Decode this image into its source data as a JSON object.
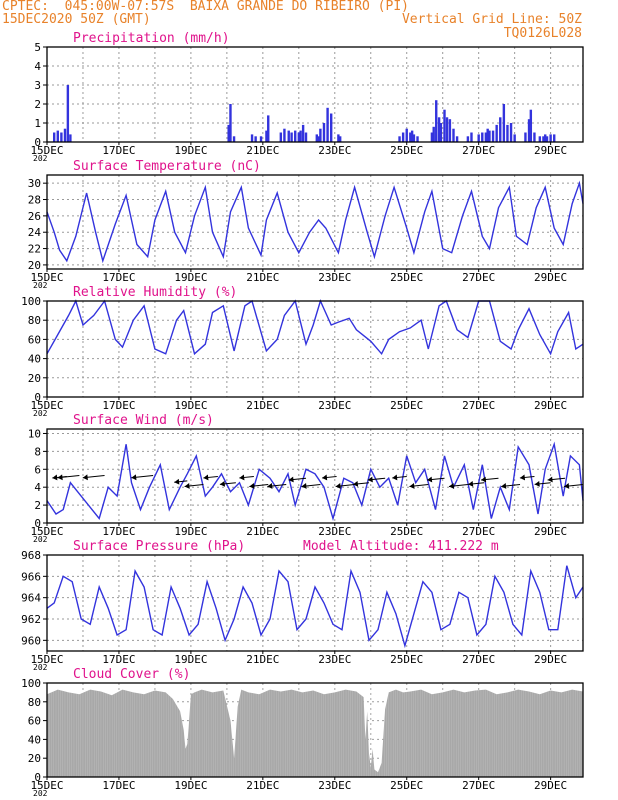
{
  "header": {
    "line1_left": "CPTEC:  045:00W-07:57S  BAIXA GRANDE DO RIBEIRO (PI)",
    "line2_left": "15DEC2020 50Z (GMT)",
    "line2_right": "Vertical Grid Line: 50Z",
    "line3_right": "TQ0126L028"
  },
  "colors": {
    "header": "#e8822a",
    "title": "#e0138c",
    "line": "#3333dd",
    "bar": "#3333dd",
    "cloud": "#a8a8a8",
    "grid": "#9a9a9a"
  },
  "x_tick_labels": [
    "15DEC",
    "17DEC",
    "19DEC",
    "21DEC",
    "23DEC",
    "25DEC",
    "27DEC",
    "29DEC"
  ],
  "year_fragment": "202",
  "chart_data": [
    {
      "type": "bar",
      "title": "Precipitation (mm/h)",
      "ylim": [
        0,
        5
      ],
      "yticks": [
        "0",
        "1",
        "2",
        "3",
        "4",
        "5"
      ],
      "x_start_day": 15.0,
      "x_end_day": 29.9,
      "bars": [
        [
          15.2,
          0.5
        ],
        [
          15.3,
          0.6
        ],
        [
          15.4,
          0.5
        ],
        [
          15.5,
          0.7
        ],
        [
          15.58,
          3.0
        ],
        [
          15.65,
          0.4
        ],
        [
          20.05,
          0.9
        ],
        [
          20.1,
          2.0
        ],
        [
          20.2,
          0.3
        ],
        [
          20.7,
          0.4
        ],
        [
          20.8,
          0.3
        ],
        [
          20.95,
          0.3
        ],
        [
          21.1,
          0.6
        ],
        [
          21.15,
          1.4
        ],
        [
          21.5,
          0.5
        ],
        [
          21.6,
          0.7
        ],
        [
          21.72,
          0.6
        ],
        [
          21.8,
          0.5
        ],
        [
          21.9,
          0.6
        ],
        [
          22.0,
          0.5
        ],
        [
          22.05,
          0.6
        ],
        [
          22.12,
          0.9
        ],
        [
          22.2,
          0.5
        ],
        [
          22.5,
          0.4
        ],
        [
          22.55,
          0.3
        ],
        [
          22.6,
          0.7
        ],
        [
          22.7,
          1.0
        ],
        [
          22.8,
          1.8
        ],
        [
          22.9,
          1.5
        ],
        [
          23.1,
          0.4
        ],
        [
          23.15,
          0.3
        ],
        [
          24.8,
          0.3
        ],
        [
          24.9,
          0.5
        ],
        [
          25.0,
          0.7
        ],
        [
          25.1,
          0.5
        ],
        [
          25.15,
          0.6
        ],
        [
          25.2,
          0.4
        ],
        [
          25.3,
          0.3
        ],
        [
          25.7,
          0.5
        ],
        [
          25.75,
          0.8
        ],
        [
          25.82,
          2.2
        ],
        [
          25.9,
          1.3
        ],
        [
          25.95,
          1.0
        ],
        [
          26.05,
          1.7
        ],
        [
          26.12,
          1.3
        ],
        [
          26.2,
          1.2
        ],
        [
          26.3,
          0.7
        ],
        [
          26.4,
          0.3
        ],
        [
          26.7,
          0.3
        ],
        [
          26.8,
          0.5
        ],
        [
          27.0,
          0.4
        ],
        [
          27.1,
          0.5
        ],
        [
          27.2,
          0.5
        ],
        [
          27.25,
          0.7
        ],
        [
          27.3,
          0.6
        ],
        [
          27.4,
          0.6
        ],
        [
          27.5,
          0.9
        ],
        [
          27.6,
          1.3
        ],
        [
          27.7,
          2.0
        ],
        [
          27.8,
          0.9
        ],
        [
          27.9,
          1.0
        ],
        [
          28.0,
          0.4
        ],
        [
          28.3,
          0.5
        ],
        [
          28.4,
          1.2
        ],
        [
          28.45,
          1.7
        ],
        [
          28.55,
          0.5
        ],
        [
          28.7,
          0.3
        ],
        [
          28.8,
          0.3
        ],
        [
          28.85,
          0.4
        ],
        [
          28.9,
          0.3
        ],
        [
          29.0,
          0.4
        ],
        [
          29.1,
          0.4
        ]
      ]
    },
    {
      "type": "line",
      "title": "Surface Temperature (nC)",
      "ylim": [
        19.5,
        31
      ],
      "yticks": [
        "20",
        "22",
        "24",
        "26",
        "28",
        "30"
      ],
      "ytick_values": [
        20,
        22,
        24,
        26,
        28,
        30
      ],
      "x": [
        15.0,
        15.2,
        15.35,
        15.55,
        15.8,
        16.1,
        16.35,
        16.55,
        16.9,
        17.2,
        17.5,
        17.8,
        18.0,
        18.3,
        18.55,
        18.85,
        19.1,
        19.4,
        19.6,
        19.9,
        20.1,
        20.4,
        20.6,
        20.95,
        21.1,
        21.4,
        21.7,
        22.0,
        22.3,
        22.55,
        22.75,
        23.1,
        23.3,
        23.55,
        23.9,
        24.1,
        24.4,
        24.65,
        25.0,
        25.2,
        25.5,
        25.7,
        26.0,
        26.25,
        26.55,
        26.8,
        27.1,
        27.3,
        27.55,
        27.85,
        28.05,
        28.35,
        28.6,
        28.85,
        29.1,
        29.35,
        29.6,
        29.8,
        29.9
      ],
      "y": [
        26.5,
        24.0,
        21.8,
        20.5,
        23.5,
        28.8,
        24.0,
        20.5,
        25.0,
        28.5,
        22.5,
        21.0,
        25.5,
        29.0,
        24.0,
        21.5,
        26.0,
        29.5,
        24.0,
        21.0,
        26.5,
        29.5,
        24.5,
        21.2,
        25.5,
        28.8,
        24.0,
        21.5,
        24.0,
        25.5,
        24.5,
        21.5,
        25.5,
        29.5,
        24.0,
        21.0,
        26.0,
        29.5,
        24.5,
        21.5,
        26.5,
        29.0,
        22.0,
        21.5,
        26.0,
        29.0,
        23.5,
        22.0,
        27.0,
        29.5,
        23.5,
        22.5,
        27.0,
        29.5,
        24.5,
        22.5,
        27.5,
        30.0,
        27.5
      ]
    },
    {
      "type": "line",
      "title": "Relative Humidity (%)",
      "ylim": [
        0,
        100
      ],
      "yticks": [
        "0",
        "20",
        "40",
        "60",
        "80",
        "100"
      ],
      "ytick_values": [
        0,
        20,
        40,
        60,
        80,
        100
      ],
      "x": [
        15.0,
        15.3,
        15.6,
        15.8,
        16.0,
        16.3,
        16.6,
        16.9,
        17.1,
        17.4,
        17.7,
        18.0,
        18.3,
        18.6,
        18.8,
        19.1,
        19.4,
        19.6,
        19.9,
        20.2,
        20.5,
        20.7,
        21.1,
        21.4,
        21.6,
        21.9,
        22.2,
        22.4,
        22.6,
        22.9,
        23.1,
        23.4,
        23.6,
        24.0,
        24.3,
        24.5,
        24.8,
        25.1,
        25.4,
        25.6,
        25.9,
        26.1,
        26.4,
        26.7,
        27.0,
        27.3,
        27.6,
        27.9,
        28.1,
        28.4,
        28.7,
        29.0,
        29.2,
        29.5,
        29.7,
        29.9
      ],
      "y": [
        45,
        65,
        85,
        100,
        75,
        85,
        100,
        60,
        52,
        80,
        95,
        50,
        45,
        80,
        90,
        45,
        55,
        88,
        95,
        48,
        95,
        100,
        48,
        60,
        85,
        100,
        55,
        75,
        100,
        75,
        78,
        82,
        70,
        58,
        45,
        60,
        68,
        72,
        80,
        50,
        95,
        100,
        70,
        62,
        100,
        100,
        58,
        50,
        70,
        92,
        65,
        45,
        68,
        88,
        50,
        55
      ]
    },
    {
      "type": "line",
      "title": "Surface Wind (m/s)",
      "ylim": [
        0,
        10.5
      ],
      "yticks": [
        "0",
        "2",
        "4",
        "6",
        "8",
        "10"
      ],
      "ytick_values": [
        0,
        2,
        4,
        6,
        8,
        10
      ],
      "x": [
        15.0,
        15.25,
        15.45,
        15.65,
        15.85,
        16.15,
        16.45,
        16.7,
        16.95,
        17.2,
        17.35,
        17.6,
        17.85,
        18.15,
        18.4,
        18.7,
        18.9,
        19.15,
        19.4,
        19.6,
        19.85,
        20.1,
        20.35,
        20.6,
        20.9,
        21.2,
        21.45,
        21.7,
        21.9,
        22.2,
        22.45,
        22.7,
        22.95,
        23.25,
        23.5,
        23.75,
        24.0,
        24.25,
        24.5,
        24.75,
        25.0,
        25.25,
        25.5,
        25.8,
        26.05,
        26.3,
        26.6,
        26.85,
        27.1,
        27.35,
        27.6,
        27.85,
        28.1,
        28.4,
        28.65,
        28.85,
        29.1,
        29.35,
        29.55,
        29.8,
        29.9
      ],
      "y": [
        2.5,
        1.0,
        1.5,
        4.5,
        3.5,
        2.0,
        0.5,
        4.0,
        3.0,
        8.8,
        4.5,
        1.5,
        4.0,
        6.5,
        1.5,
        4.0,
        5.5,
        7.5,
        3.0,
        4.0,
        5.5,
        3.5,
        4.5,
        2.0,
        6.0,
        5.0,
        3.5,
        5.5,
        2.0,
        6.0,
        5.5,
        4.0,
        0.5,
        5.0,
        4.5,
        2.0,
        6.0,
        4.0,
        5.0,
        2.0,
        7.5,
        4.5,
        6.0,
        1.5,
        7.5,
        4.0,
        6.5,
        1.5,
        6.5,
        0.5,
        4.0,
        1.5,
        8.5,
        6.5,
        1.0,
        6.0,
        8.8,
        3.0,
        7.5,
        6.5,
        2.5
      ],
      "arrows": [
        [
          15.55,
          1
        ],
        [
          15.9,
          3.5
        ],
        [
          16.6,
          3.5
        ],
        [
          17.95,
          3.5
        ],
        [
          18.9,
          0.5
        ],
        [
          19.35,
          2.5
        ],
        [
          19.75,
          1.0
        ],
        [
          20.25,
          1.5
        ],
        [
          20.75,
          1.0
        ],
        [
          21.15,
          2.5
        ],
        [
          21.65,
          2.5
        ],
        [
          22.2,
          2.0
        ],
        [
          22.6,
          2.5
        ],
        [
          23.05,
          1.0
        ],
        [
          23.55,
          2.5
        ],
        [
          23.95,
          1.5
        ],
        [
          24.4,
          2.0
        ],
        [
          25.0,
          1.0
        ],
        [
          25.6,
          2.5
        ],
        [
          26.05,
          2.0
        ],
        [
          26.7,
          2.5
        ],
        [
          27.15,
          1.5
        ],
        [
          27.55,
          2.0
        ],
        [
          28.15,
          2.5
        ],
        [
          28.55,
          1.0
        ],
        [
          29.0,
          1.5
        ],
        [
          29.4,
          2.0
        ],
        [
          29.9,
          2.5
        ]
      ]
    },
    {
      "type": "line",
      "title": "Surface Pressure (hPa)",
      "subtitle": "Model Altitude: 411.222 m",
      "ylim": [
        959,
        968
      ],
      "yticks": [
        "960",
        "962",
        "964",
        "966",
        "968"
      ],
      "ytick_values": [
        960,
        962,
        964,
        966,
        968
      ],
      "x": [
        15.0,
        15.2,
        15.45,
        15.7,
        15.95,
        16.2,
        16.45,
        16.7,
        16.95,
        17.2,
        17.45,
        17.7,
        17.95,
        18.2,
        18.45,
        18.7,
        18.95,
        19.2,
        19.45,
        19.7,
        19.95,
        20.2,
        20.45,
        20.7,
        20.95,
        21.2,
        21.45,
        21.7,
        21.95,
        22.2,
        22.45,
        22.7,
        22.95,
        23.2,
        23.45,
        23.7,
        23.95,
        24.2,
        24.45,
        24.7,
        24.95,
        25.2,
        25.45,
        25.7,
        25.95,
        26.2,
        26.45,
        26.7,
        26.95,
        27.2,
        27.45,
        27.7,
        27.95,
        28.2,
        28.45,
        28.7,
        28.95,
        29.2,
        29.45,
        29.7,
        29.9
      ],
      "y": [
        963,
        963.5,
        966,
        965.5,
        962,
        961.5,
        965,
        963,
        960.5,
        961,
        966.5,
        965,
        961,
        960.5,
        965,
        963,
        960.5,
        961.5,
        965.5,
        963,
        960,
        962,
        965,
        963.5,
        960.5,
        962,
        966.5,
        965.5,
        961,
        962,
        965,
        963.5,
        961.5,
        961,
        966.5,
        964.5,
        960,
        961,
        964.5,
        962.5,
        959.5,
        962.5,
        965.5,
        964.5,
        961,
        961.5,
        964.5,
        964,
        960.5,
        961.5,
        966,
        964.5,
        961.5,
        960.5,
        966.5,
        964.5,
        961,
        961,
        967,
        964,
        965
      ]
    },
    {
      "type": "area",
      "title": "Cloud Cover (%)",
      "ylim": [
        0,
        100
      ],
      "yticks": [
        "0",
        "20",
        "40",
        "60",
        "80",
        "100"
      ],
      "ytick_values": [
        0,
        20,
        40,
        60,
        80,
        100
      ],
      "x": [
        15.0,
        15.3,
        15.6,
        15.9,
        16.2,
        16.5,
        16.8,
        17.1,
        17.4,
        17.7,
        18.0,
        18.3,
        18.5,
        18.7,
        18.8,
        18.85,
        18.9,
        18.95,
        19.0,
        19.1,
        19.3,
        19.6,
        19.9,
        20.1,
        20.2,
        20.3,
        20.4,
        20.6,
        20.9,
        21.2,
        21.5,
        21.8,
        22.1,
        22.4,
        22.7,
        23.0,
        23.3,
        23.6,
        23.8,
        23.85,
        23.9,
        23.95,
        24.0,
        24.05,
        24.1,
        24.2,
        24.3,
        24.4,
        24.5,
        24.7,
        24.9,
        25.1,
        25.4,
        25.7,
        26.0,
        26.3,
        26.6,
        26.9,
        27.2,
        27.5,
        27.8,
        28.1,
        28.4,
        28.7,
        29.0,
        29.3,
        29.6,
        29.9
      ],
      "y": [
        88,
        93,
        90,
        88,
        93,
        91,
        87,
        93,
        90,
        88,
        92,
        90,
        83,
        70,
        50,
        30,
        35,
        60,
        88,
        90,
        93,
        90,
        92,
        60,
        20,
        75,
        93,
        90,
        88,
        93,
        91,
        93,
        90,
        92,
        88,
        90,
        93,
        91,
        85,
        40,
        70,
        25,
        10,
        30,
        8,
        5,
        15,
        72,
        90,
        93,
        90,
        91,
        93,
        88,
        90,
        93,
        90,
        92,
        93,
        88,
        90,
        93,
        91,
        88,
        92,
        90,
        93,
        91
      ]
    }
  ]
}
